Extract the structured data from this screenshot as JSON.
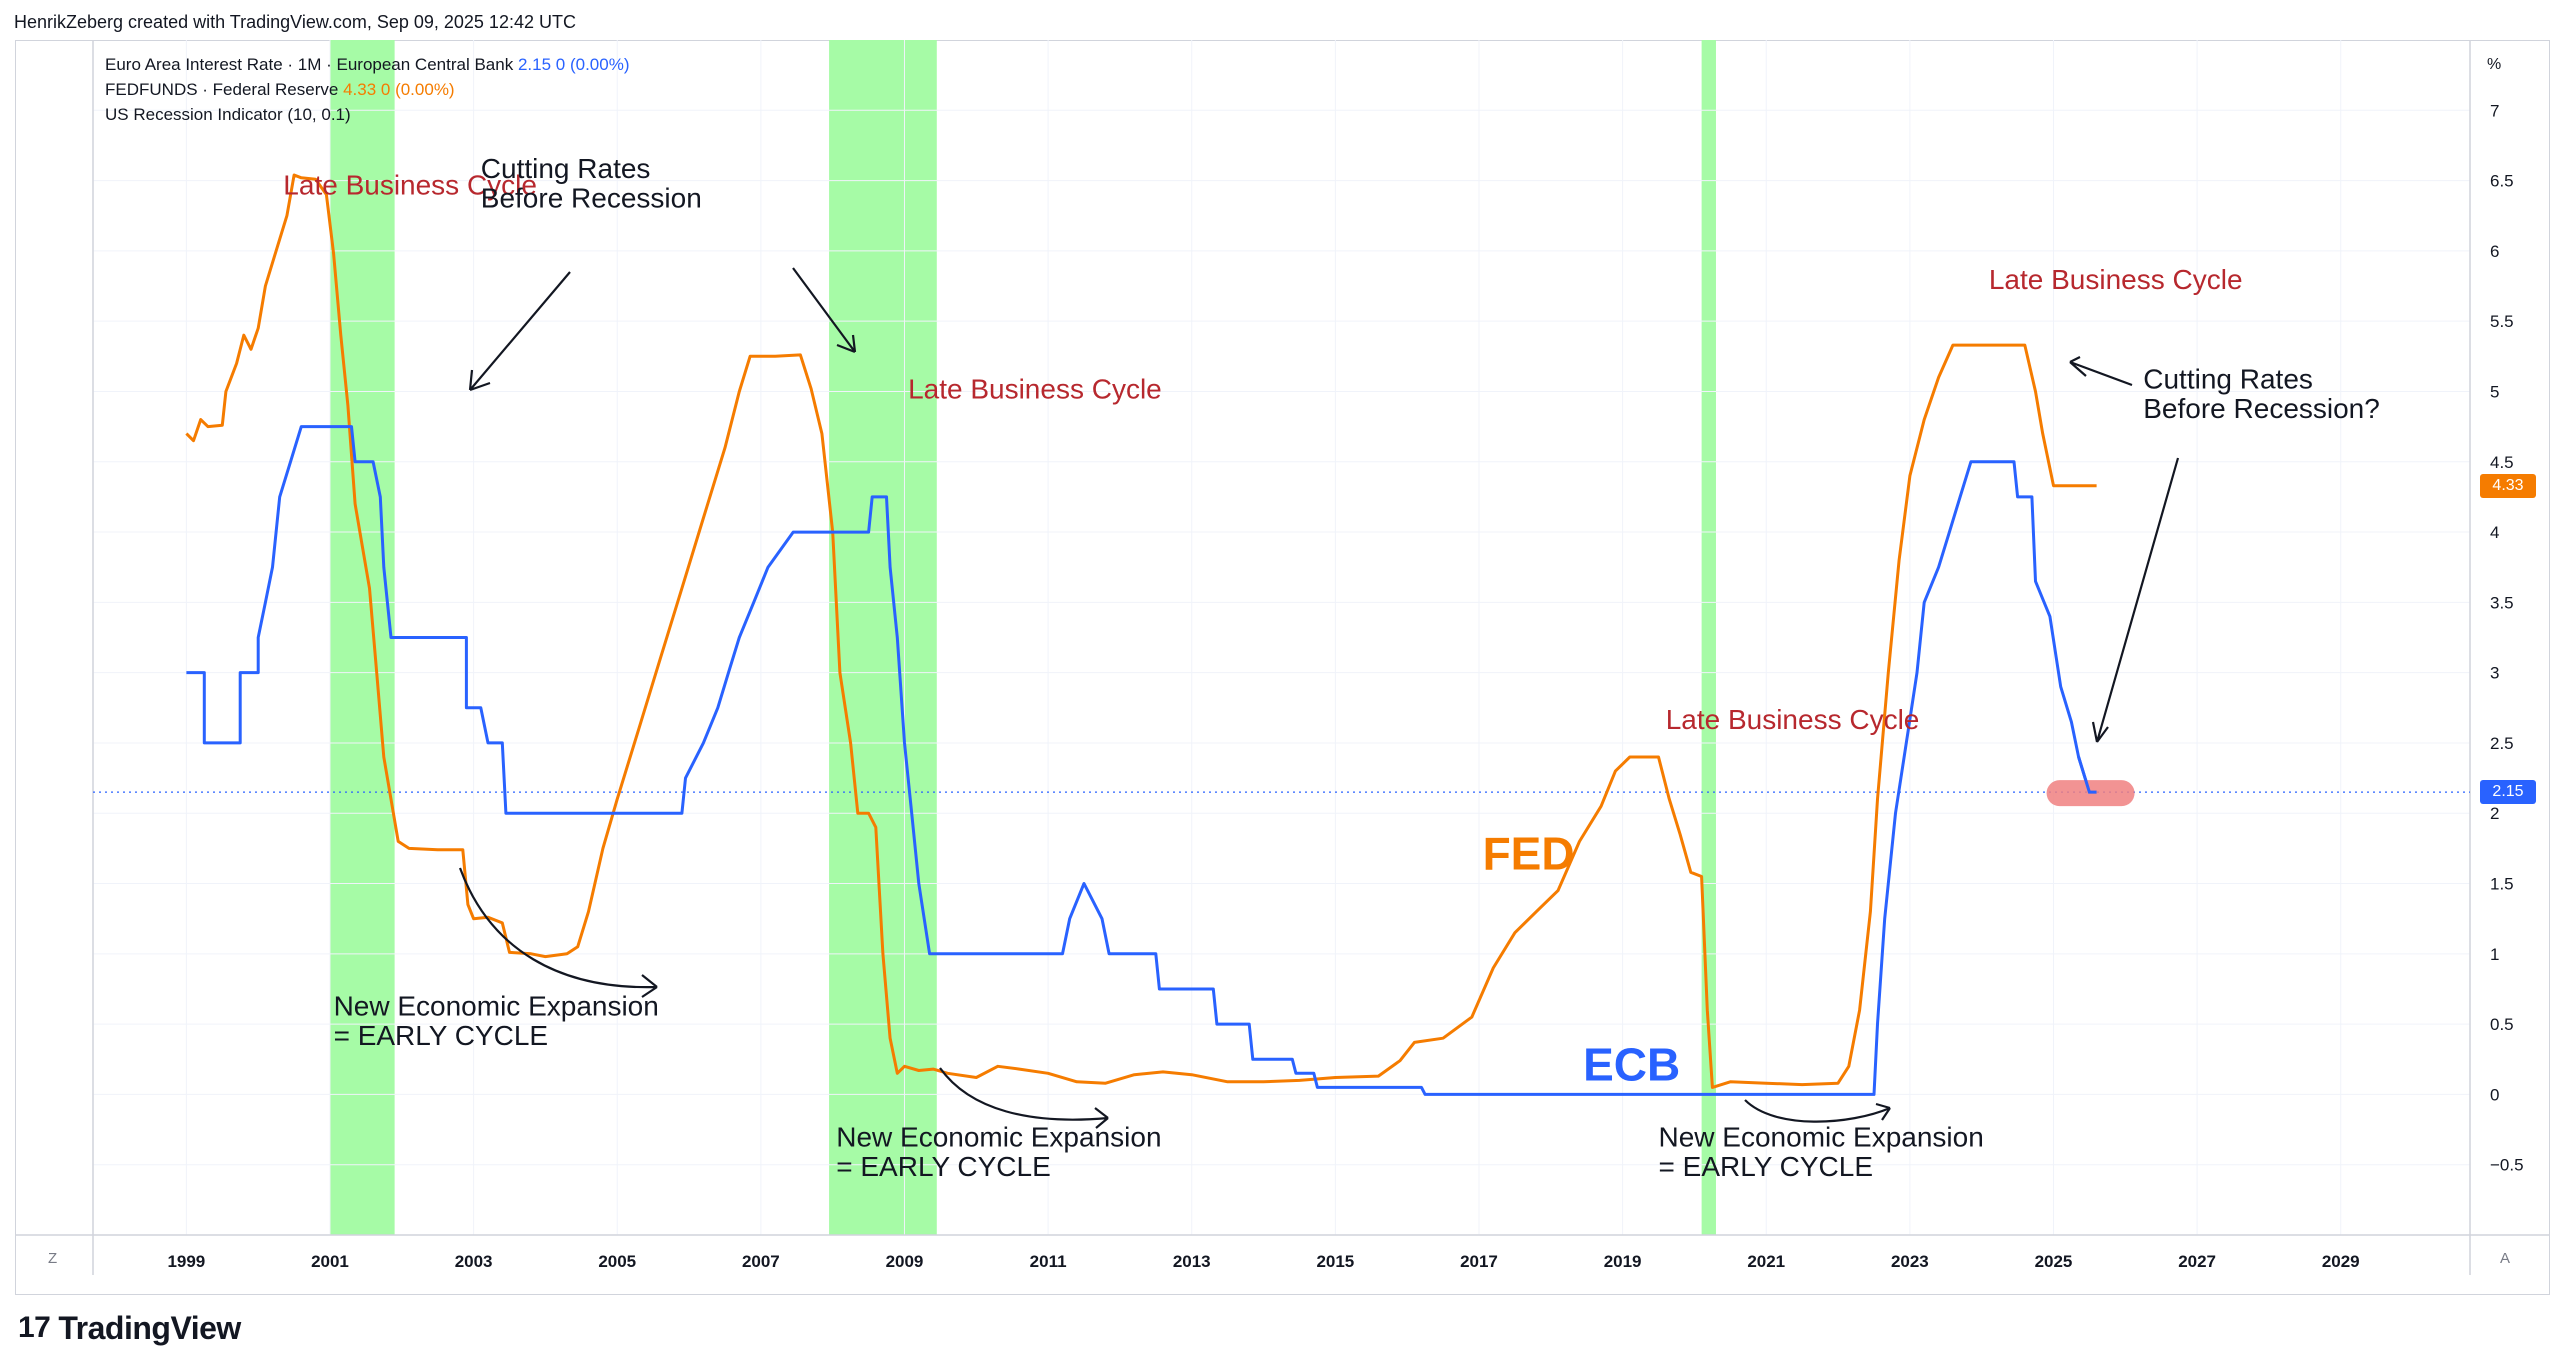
{
  "credit": "HenrikZeberg created with TradingView.com, Sep 09, 2025 12:42 UTC",
  "legend": {
    "ecb_name": "Euro Area Interest Rate · 1M · European Central Bank",
    "ecb_value": "2.15",
    "ecb_change": "0 (0.00%)",
    "fed_name": "FEDFUNDS · Federal Reserve",
    "fed_value": "4.33",
    "fed_change": "0 (0.00%)",
    "recession_name": "US Recession Indicator (10, 0.1)"
  },
  "axis_unit": "%",
  "corner_left": "Z",
  "corner_right": "A",
  "logo": {
    "mark": "17",
    "text": "TradingView"
  },
  "colors": {
    "fed": "#f57c00",
    "ecb": "#2962ff",
    "recession": "#a6fba6",
    "annotation_red": "#b7282e",
    "marker": "#f08080"
  },
  "chart_data": {
    "type": "line",
    "x_range": [
      1997.7,
      2030.8
    ],
    "ylim": [
      -1.0,
      7.5
    ],
    "y_ticks": [
      -0.5,
      0,
      0.5,
      1,
      1.5,
      2,
      2.5,
      3,
      3.5,
      4,
      4.5,
      5,
      5.5,
      6,
      6.5,
      7
    ],
    "y_tick_labels": [
      "−0.5",
      "0",
      "0.5",
      "1",
      "1.5",
      "2",
      "2.5",
      "3",
      "3.5",
      "4",
      "4.5",
      "5",
      "5.5",
      "6",
      "6.5",
      "7"
    ],
    "x_ticks": [
      1999,
      2001,
      2003,
      2005,
      2007,
      2009,
      2011,
      2013,
      2015,
      2017,
      2019,
      2021,
      2023,
      2025,
      2027,
      2029
    ],
    "x_tick_labels": [
      "1999",
      "2001",
      "2003",
      "2005",
      "2007",
      "2009",
      "2011",
      "2013",
      "2015",
      "2017",
      "2019",
      "2021",
      "2023",
      "2025",
      "2027",
      "2029"
    ],
    "grid": true,
    "dashed_reference": 2.15,
    "recessions": [
      [
        2001.0,
        2001.9
      ],
      [
        2007.95,
        2009.45
      ],
      [
        2020.1,
        2020.3
      ]
    ],
    "series": [
      {
        "name": "FEDFUNDS",
        "color": "#f57c00",
        "points": [
          [
            1999.0,
            4.7
          ],
          [
            1999.1,
            4.65
          ],
          [
            1999.2,
            4.8
          ],
          [
            1999.3,
            4.75
          ],
          [
            1999.5,
            4.76
          ],
          [
            1999.55,
            5.0
          ],
          [
            1999.7,
            5.2
          ],
          [
            1999.8,
            5.4
          ],
          [
            1999.9,
            5.3
          ],
          [
            2000.0,
            5.45
          ],
          [
            2000.1,
            5.75
          ],
          [
            2000.25,
            6.0
          ],
          [
            2000.4,
            6.25
          ],
          [
            2000.5,
            6.54
          ],
          [
            2000.6,
            6.52
          ],
          [
            2000.8,
            6.51
          ],
          [
            2000.95,
            6.4
          ],
          [
            2001.05,
            5.98
          ],
          [
            2001.15,
            5.4
          ],
          [
            2001.25,
            4.9
          ],
          [
            2001.35,
            4.2
          ],
          [
            2001.45,
            3.9
          ],
          [
            2001.55,
            3.6
          ],
          [
            2001.65,
            3.0
          ],
          [
            2001.75,
            2.4
          ],
          [
            2001.85,
            2.1
          ],
          [
            2001.95,
            1.8
          ],
          [
            2002.1,
            1.75
          ],
          [
            2002.5,
            1.74
          ],
          [
            2002.85,
            1.74
          ],
          [
            2002.92,
            1.35
          ],
          [
            2003.0,
            1.25
          ],
          [
            2003.2,
            1.26
          ],
          [
            2003.4,
            1.22
          ],
          [
            2003.5,
            1.01
          ],
          [
            2003.8,
            1.0
          ],
          [
            2004.0,
            0.98
          ],
          [
            2004.3,
            1.0
          ],
          [
            2004.45,
            1.05
          ],
          [
            2004.6,
            1.3
          ],
          [
            2004.8,
            1.75
          ],
          [
            2005.0,
            2.1
          ],
          [
            2005.3,
            2.6
          ],
          [
            2005.6,
            3.1
          ],
          [
            2005.9,
            3.6
          ],
          [
            2006.2,
            4.1
          ],
          [
            2006.5,
            4.6
          ],
          [
            2006.7,
            5.0
          ],
          [
            2006.85,
            5.25
          ],
          [
            2007.2,
            5.25
          ],
          [
            2007.55,
            5.26
          ],
          [
            2007.7,
            5.02
          ],
          [
            2007.85,
            4.7
          ],
          [
            2008.0,
            4.0
          ],
          [
            2008.1,
            3.0
          ],
          [
            2008.25,
            2.5
          ],
          [
            2008.35,
            2.0
          ],
          [
            2008.5,
            2.0
          ],
          [
            2008.6,
            1.9
          ],
          [
            2008.7,
            1.0
          ],
          [
            2008.8,
            0.4
          ],
          [
            2008.9,
            0.15
          ],
          [
            2009.0,
            0.2
          ],
          [
            2009.2,
            0.17
          ],
          [
            2009.4,
            0.18
          ],
          [
            2009.6,
            0.15
          ],
          [
            2010.0,
            0.12
          ],
          [
            2010.3,
            0.2
          ],
          [
            2010.6,
            0.18
          ],
          [
            2011.0,
            0.15
          ],
          [
            2011.4,
            0.09
          ],
          [
            2011.8,
            0.08
          ],
          [
            2012.2,
            0.14
          ],
          [
            2012.6,
            0.16
          ],
          [
            2013.0,
            0.14
          ],
          [
            2013.5,
            0.09
          ],
          [
            2014.0,
            0.09
          ],
          [
            2014.5,
            0.1
          ],
          [
            2015.0,
            0.12
          ],
          [
            2015.6,
            0.13
          ],
          [
            2015.9,
            0.24
          ],
          [
            2016.1,
            0.37
          ],
          [
            2016.5,
            0.4
          ],
          [
            2016.9,
            0.55
          ],
          [
            2017.2,
            0.9
          ],
          [
            2017.5,
            1.15
          ],
          [
            2017.8,
            1.3
          ],
          [
            2018.1,
            1.45
          ],
          [
            2018.4,
            1.8
          ],
          [
            2018.7,
            2.05
          ],
          [
            2018.9,
            2.3
          ],
          [
            2019.1,
            2.4
          ],
          [
            2019.5,
            2.4
          ],
          [
            2019.65,
            2.1
          ],
          [
            2019.8,
            1.85
          ],
          [
            2019.95,
            1.58
          ],
          [
            2020.1,
            1.55
          ],
          [
            2020.18,
            0.6
          ],
          [
            2020.25,
            0.05
          ],
          [
            2020.5,
            0.09
          ],
          [
            2021.0,
            0.08
          ],
          [
            2021.5,
            0.07
          ],
          [
            2022.0,
            0.08
          ],
          [
            2022.15,
            0.2
          ],
          [
            2022.3,
            0.6
          ],
          [
            2022.45,
            1.3
          ],
          [
            2022.55,
            2.1
          ],
          [
            2022.7,
            3.0
          ],
          [
            2022.85,
            3.8
          ],
          [
            2023.0,
            4.4
          ],
          [
            2023.2,
            4.8
          ],
          [
            2023.4,
            5.1
          ],
          [
            2023.6,
            5.33
          ],
          [
            2024.6,
            5.33
          ],
          [
            2024.75,
            5.0
          ],
          [
            2024.85,
            4.7
          ],
          [
            2025.0,
            4.33
          ],
          [
            2025.6,
            4.33
          ]
        ]
      },
      {
        "name": "ECB",
        "color": "#2962ff",
        "points": [
          [
            1999.0,
            3.0
          ],
          [
            1999.25,
            3.0
          ],
          [
            1999.25,
            2.5
          ],
          [
            1999.75,
            2.5
          ],
          [
            1999.75,
            3.0
          ],
          [
            2000.0,
            3.0
          ],
          [
            2000.0,
            3.25
          ],
          [
            2000.1,
            3.5
          ],
          [
            2000.2,
            3.75
          ],
          [
            2000.3,
            4.25
          ],
          [
            2000.45,
            4.5
          ],
          [
            2000.6,
            4.75
          ],
          [
            2001.3,
            4.75
          ],
          [
            2001.35,
            4.5
          ],
          [
            2001.6,
            4.5
          ],
          [
            2001.7,
            4.25
          ],
          [
            2001.75,
            3.75
          ],
          [
            2001.85,
            3.25
          ],
          [
            2002.9,
            3.25
          ],
          [
            2002.9,
            2.75
          ],
          [
            2003.1,
            2.75
          ],
          [
            2003.2,
            2.5
          ],
          [
            2003.4,
            2.5
          ],
          [
            2003.45,
            2.0
          ],
          [
            2005.9,
            2.0
          ],
          [
            2005.95,
            2.25
          ],
          [
            2006.2,
            2.5
          ],
          [
            2006.4,
            2.75
          ],
          [
            2006.55,
            3.0
          ],
          [
            2006.7,
            3.25
          ],
          [
            2006.9,
            3.5
          ],
          [
            2007.1,
            3.75
          ],
          [
            2007.45,
            4.0
          ],
          [
            2008.5,
            4.0
          ],
          [
            2008.55,
            4.25
          ],
          [
            2008.75,
            4.25
          ],
          [
            2008.8,
            3.75
          ],
          [
            2008.9,
            3.25
          ],
          [
            2009.0,
            2.5
          ],
          [
            2009.1,
            2.0
          ],
          [
            2009.2,
            1.5
          ],
          [
            2009.35,
            1.0
          ],
          [
            2011.2,
            1.0
          ],
          [
            2011.3,
            1.25
          ],
          [
            2011.5,
            1.5
          ],
          [
            2011.75,
            1.25
          ],
          [
            2011.85,
            1.0
          ],
          [
            2012.5,
            1.0
          ],
          [
            2012.55,
            0.75
          ],
          [
            2013.3,
            0.75
          ],
          [
            2013.35,
            0.5
          ],
          [
            2013.8,
            0.5
          ],
          [
            2013.85,
            0.25
          ],
          [
            2014.4,
            0.25
          ],
          [
            2014.45,
            0.15
          ],
          [
            2014.7,
            0.15
          ],
          [
            2014.75,
            0.05
          ],
          [
            2016.2,
            0.05
          ],
          [
            2016.25,
            0.0
          ],
          [
            2022.5,
            0.0
          ],
          [
            2022.55,
            0.5
          ],
          [
            2022.65,
            1.25
          ],
          [
            2022.8,
            2.0
          ],
          [
            2022.95,
            2.5
          ],
          [
            2023.1,
            3.0
          ],
          [
            2023.2,
            3.5
          ],
          [
            2023.4,
            3.75
          ],
          [
            2023.55,
            4.0
          ],
          [
            2023.7,
            4.25
          ],
          [
            2023.85,
            4.5
          ],
          [
            2024.45,
            4.5
          ],
          [
            2024.5,
            4.25
          ],
          [
            2024.7,
            4.25
          ],
          [
            2024.75,
            3.65
          ],
          [
            2024.95,
            3.4
          ],
          [
            2025.1,
            2.9
          ],
          [
            2025.25,
            2.65
          ],
          [
            2025.35,
            2.4
          ],
          [
            2025.5,
            2.15
          ],
          [
            2025.6,
            2.15
          ]
        ]
      }
    ],
    "annotations": [
      {
        "text": "Late Business Cycle",
        "x": 2000.35,
        "y": 6.4,
        "color": "#b7282e"
      },
      {
        "text": "Late Business Cycle",
        "x": 2009.05,
        "y": 4.95,
        "color": "#b7282e"
      },
      {
        "text": "Late Business Cycle",
        "x": 2019.6,
        "y": 2.6,
        "color": "#b7282e"
      },
      {
        "text": "Late Business Cycle",
        "x": 2024.1,
        "y": 5.73,
        "color": "#b7282e"
      },
      {
        "text": "Cutting Rates",
        "x": 2003.1,
        "y": 6.52,
        "color": "#131722"
      },
      {
        "text": "Before Recession",
        "x": 2003.1,
        "y": 6.31,
        "color": "#131722"
      },
      {
        "text": "Cutting Rates",
        "x": 2026.25,
        "y": 5.02,
        "color": "#131722"
      },
      {
        "text": "Before Recession?",
        "x": 2026.25,
        "y": 4.81,
        "color": "#131722"
      },
      {
        "text": "New Economic Expansion",
        "x": 2001.05,
        "y": 0.56,
        "color": "#131722"
      },
      {
        "text": "= EARLY CYCLE",
        "x": 2001.05,
        "y": 0.35,
        "color": "#131722"
      },
      {
        "text": "New Economic Expansion",
        "x": 2008.05,
        "y": -0.37,
        "color": "#131722"
      },
      {
        "text": "= EARLY CYCLE",
        "x": 2008.05,
        "y": -0.58,
        "color": "#131722"
      },
      {
        "text": "New Economic Expansion",
        "x": 2019.5,
        "y": -0.37,
        "color": "#131722"
      },
      {
        "text": "= EARLY CYCLE",
        "x": 2019.5,
        "y": -0.58,
        "color": "#131722"
      },
      {
        "text": "FED",
        "x": 2017.05,
        "y": 1.6,
        "color": "#f57c00",
        "bold": true
      },
      {
        "text": "ECB",
        "x": 2018.45,
        "y": 0.1,
        "color": "#2962ff",
        "bold": true
      }
    ]
  }
}
